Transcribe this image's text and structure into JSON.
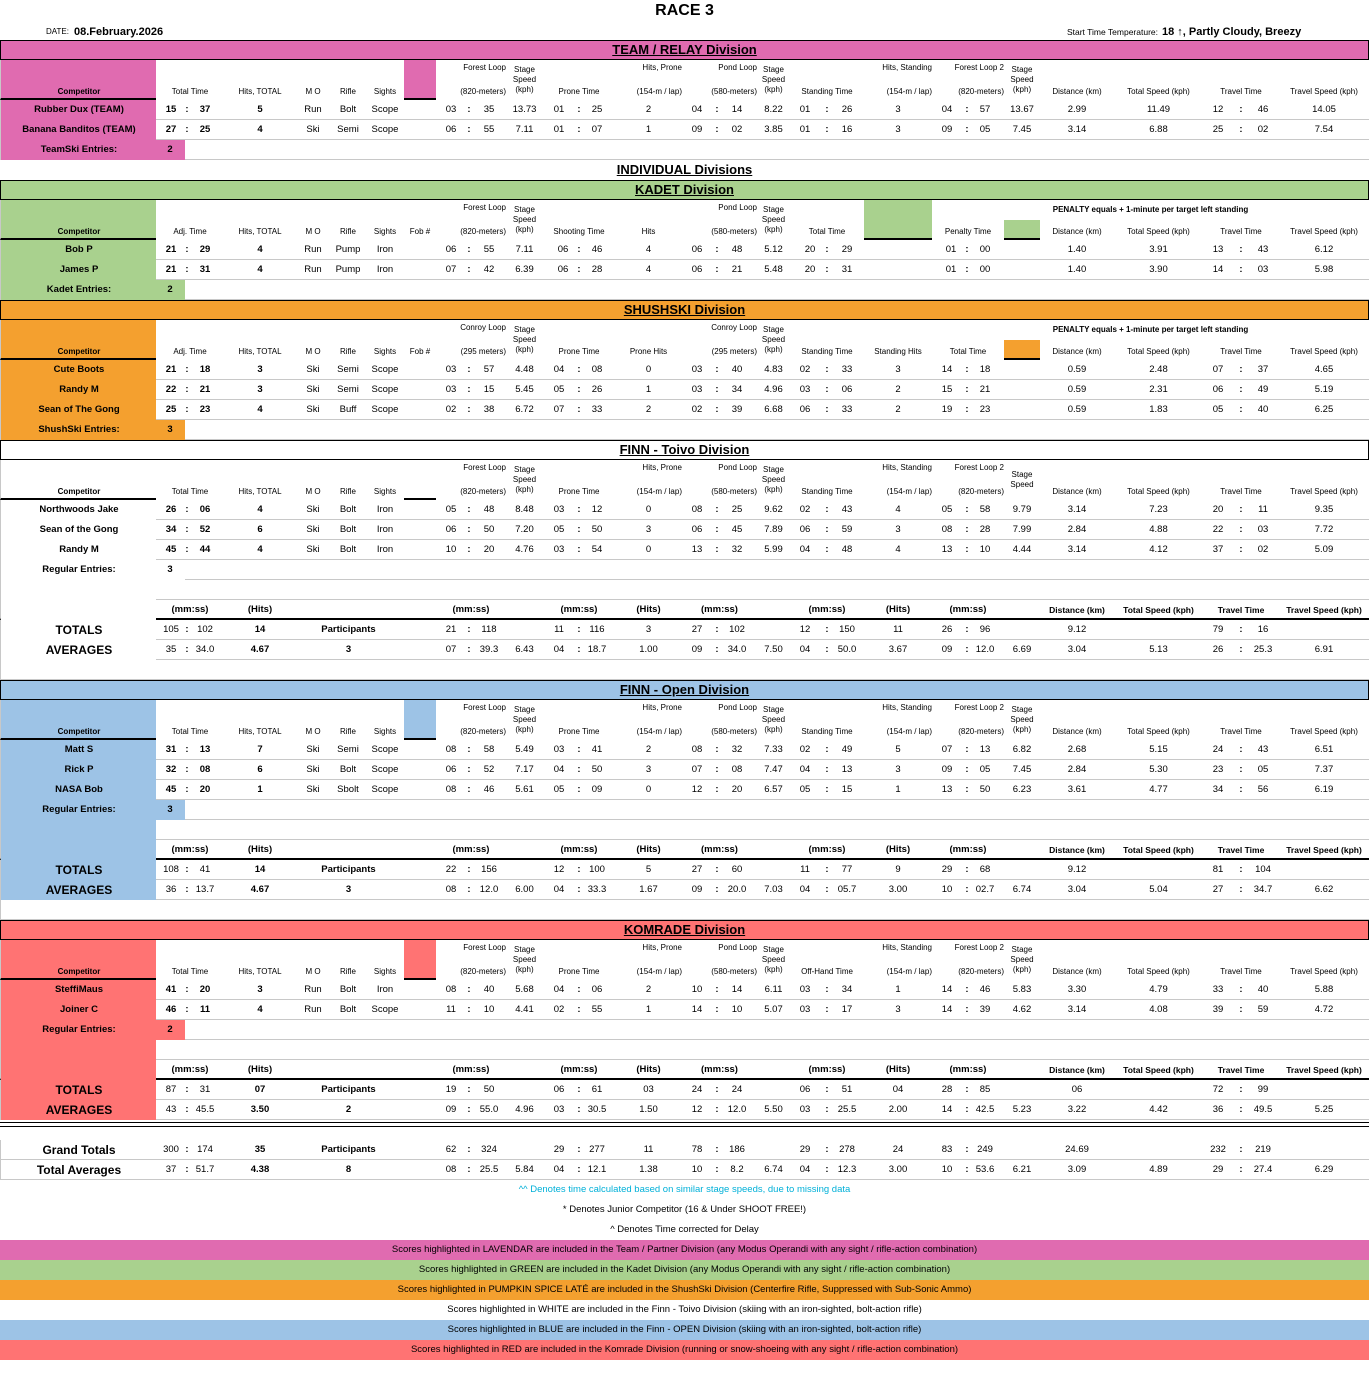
{
  "title": "RACE 3",
  "date_label": "DATE:",
  "date": "08.February.2026",
  "temp_label": "Start Time Temperature:",
  "temp_value": "18 ↑, Partly Cloudy, Breezy",
  "individual_title": "INDIVIDUAL Divisions",
  "colors": {
    "team": "#e06bb0",
    "kadet": "#a9d18e",
    "shushski": "#f4a02f",
    "finn_toivo": "#ffffff",
    "finn_open": "#9dc3e6",
    "komrade": "#ff7373"
  },
  "divisions": [
    {
      "id": "team",
      "title": "TEAM / RELAY Division",
      "color": "team",
      "layout": "A",
      "headers": [
        "Competitor",
        "Total Time",
        "Hits, TOTAL",
        "M O",
        "Rifle",
        "Sights",
        "Forest Loop\n(820-meters)",
        "Stage Speed (kph)",
        "Prone Time",
        "Hits, Prone\n(154-m / lap)",
        "Pond Loop\n(580-meters)",
        "Stage Speed (kph)",
        "Standing Time",
        "Hits, Standing\n(154-m / lap)",
        "Forest Loop 2\n(820-meters)",
        "Stage Speed (kph)",
        "Distance (km)",
        "Total Speed (kph)",
        "Travel Time",
        "Travel Speed (kph)"
      ],
      "rows": [
        [
          "Rubber Dux (TEAM)",
          "15",
          "37",
          "5",
          "Run",
          "Bolt",
          "Scope",
          "03",
          "35",
          "13.73",
          "01",
          "25",
          "2",
          "04",
          "14",
          "8.22",
          "01",
          "26",
          "3",
          "04",
          "57",
          "13.67",
          "2.99",
          "11.49",
          "12",
          "46",
          "14.05"
        ],
        [
          "Banana Banditos (TEAM)",
          "27",
          "25",
          "4",
          "Ski",
          "Semi",
          "Scope",
          "06",
          "55",
          "7.11",
          "01",
          "07",
          "1",
          "09",
          "02",
          "3.85",
          "01",
          "16",
          "3",
          "09",
          "05",
          "7.45",
          "3.14",
          "6.88",
          "25",
          "02",
          "7.54"
        ]
      ],
      "entries_label": "TeamSki Entries:",
      "entries": "2"
    },
    {
      "id": "kadet",
      "title": "KADET Division",
      "color": "kadet",
      "layout": "B",
      "headers": [
        "Competitor",
        "Adj. Time",
        "Hits, TOTAL",
        "M O",
        "Rifle",
        "Sights",
        "Fob #",
        "Forest Loop\n(820-meters)",
        "Stage Speed (kph)",
        "Shooting Time",
        "Hits",
        "Pond Loop\n(580-meters)",
        "Stage Speed (kph)",
        "Total Time",
        "Penalty Time",
        "Distance (km)",
        "Total Speed (kph)",
        "Travel Time",
        "Travel Speed (kph)"
      ],
      "penalty_note": "PENALTY equals + 1-minute per target left standing",
      "rows": [
        [
          "Bob P",
          "21",
          "29",
          "4",
          "Run",
          "Pump",
          "Iron",
          "",
          "06",
          "55",
          "7.11",
          "06",
          "46",
          "4",
          "06",
          "48",
          "5.12",
          "20",
          "29",
          "01",
          "00",
          "1.40",
          "3.91",
          "13",
          "43",
          "6.12"
        ],
        [
          "James P",
          "21",
          "31",
          "4",
          "Run",
          "Pump",
          "Iron",
          "",
          "07",
          "42",
          "6.39",
          "06",
          "28",
          "4",
          "06",
          "21",
          "5.48",
          "20",
          "31",
          "01",
          "00",
          "1.40",
          "3.90",
          "14",
          "03",
          "5.98"
        ]
      ],
      "entries_label": "Kadet Entries:",
      "entries": "2"
    },
    {
      "id": "shushski",
      "title": "SHUSHSKI Division",
      "color": "shushski",
      "layout": "C",
      "headers": [
        "Competitor",
        "Adj. Time",
        "Hits, TOTAL",
        "M O",
        "Rifle",
        "Sights",
        "Fob #",
        "Conroy Loop\n(295 meters)",
        "Stage Speed (kph)",
        "Prone Time",
        "Prone Hits",
        "Conroy Loop\n(295 meters)",
        "Stage Speed (kph)",
        "Standing Time",
        "Standing Hits",
        "Total Time",
        "Distance (km)",
        "Total Speed (kph)",
        "Travel Time",
        "Travel Speed (kph)"
      ],
      "penalty_note": "PENALTY equals + 1-minute per target left standing",
      "rows": [
        [
          "Cute Boots",
          "21",
          "18",
          "3",
          "Ski",
          "Semi",
          "Scope",
          "",
          "03",
          "57",
          "4.48",
          "04",
          "08",
          "0",
          "03",
          "40",
          "4.83",
          "02",
          "33",
          "3",
          "14",
          "18",
          "0.59",
          "2.48",
          "07",
          "37",
          "4.65"
        ],
        [
          "Randy M",
          "22",
          "21",
          "3",
          "Ski",
          "Semi",
          "Scope",
          "",
          "03",
          "15",
          "5.45",
          "05",
          "26",
          "1",
          "03",
          "34",
          "4.96",
          "03",
          "06",
          "2",
          "15",
          "21",
          "0.59",
          "2.31",
          "06",
          "49",
          "5.19"
        ],
        [
          "Sean of The Gong",
          "25",
          "23",
          "4",
          "Ski",
          "Buff",
          "Scope",
          "",
          "02",
          "38",
          "6.72",
          "07",
          "33",
          "2",
          "02",
          "39",
          "6.68",
          "06",
          "33",
          "2",
          "19",
          "23",
          "0.59",
          "1.83",
          "05",
          "40",
          "6.25"
        ]
      ],
      "entries_label": "ShushSki Entries:",
      "entries": "3"
    },
    {
      "id": "toivo",
      "title": "FINN - Toivo Division",
      "color": "finn_toivo",
      "layout": "A",
      "headers": [
        "Competitor",
        "Total Time",
        "Hits, TOTAL",
        "M O",
        "Rifle",
        "Sights",
        "Forest Loop\n(820-meters)",
        "Stage Speed (kph)",
        "Prone Time",
        "Hits, Prone\n(154-m / lap)",
        "Pond Loop\n(580-meters)",
        "Stage Speed (kph)",
        "Standing Time",
        "Hits, Standing\n(154-m / lap)",
        "Forest Loop 2\n(820-meters)",
        "Stage Speed",
        "Distance (km)",
        "Total Speed (kph)",
        "Travel Time",
        "Travel Speed (kph)"
      ],
      "rows": [
        [
          "Northwoods Jake",
          "26",
          "06",
          "4",
          "Ski",
          "Bolt",
          "Iron",
          "05",
          "48",
          "8.48",
          "03",
          "12",
          "0",
          "08",
          "25",
          "9.62",
          "02",
          "43",
          "4",
          "05",
          "58",
          "9.79",
          "3.14",
          "7.23",
          "20",
          "11",
          "9.35"
        ],
        [
          "Sean of the Gong",
          "34",
          "52",
          "6",
          "Ski",
          "Bolt",
          "Iron",
          "06",
          "50",
          "7.20",
          "05",
          "50",
          "3",
          "06",
          "45",
          "7.89",
          "06",
          "59",
          "3",
          "08",
          "28",
          "7.99",
          "2.84",
          "4.88",
          "22",
          "03",
          "7.72"
        ],
        [
          "Randy M",
          "45",
          "44",
          "4",
          "Ski",
          "Bolt",
          "Iron",
          "10",
          "20",
          "4.76",
          "03",
          "54",
          "0",
          "13",
          "32",
          "5.99",
          "04",
          "48",
          "4",
          "13",
          "10",
          "4.44",
          "3.14",
          "4.12",
          "37",
          "02",
          "5.09"
        ]
      ],
      "entries_label": "Regular Entries:",
      "entries": "3",
      "units": [
        "(mm:ss)",
        "(Hits)",
        "(mm:ss)",
        "(mm:ss)",
        "(Hits)",
        "(mm:ss)",
        "(mm:ss)",
        "(Hits)",
        "(mm:ss)",
        "Distance (km)",
        "Total Speed (kph)",
        "Travel Time",
        "Travel Speed (kph)"
      ],
      "totals": [
        "TOTALS",
        "105",
        "102",
        "14",
        "Participants",
        "21",
        "118",
        "",
        "11",
        "116",
        "3",
        "27",
        "102",
        "",
        "12",
        "150",
        "11",
        "26",
        "96",
        "",
        "9.12",
        "",
        "79",
        "16",
        ""
      ],
      "averages": [
        "AVERAGES",
        "35",
        "34.0",
        "4.67",
        "3",
        "07",
        "39.3",
        "6.43",
        "04",
        "18.7",
        "1.00",
        "09",
        "34.0",
        "7.50",
        "04",
        "50.0",
        "3.67",
        "09",
        "12.0",
        "6.69",
        "3.04",
        "5.13",
        "26",
        "25.3",
        "6.91"
      ]
    },
    {
      "id": "open",
      "title": "FINN - Open Division",
      "color": "finn_open",
      "layout": "A",
      "headers": [
        "Competitor",
        "Total Time",
        "Hits, TOTAL",
        "M O",
        "Rifle",
        "Sights",
        "Forest Loop\n(820-meters)",
        "Stage Speed (kph)",
        "Prone Time",
        "Hits, Prone\n(154-m / lap)",
        "Pond Loop\n(580-meters)",
        "Stage Speed (kph)",
        "Standing Time",
        "Hits, Standing\n(154-m / lap)",
        "Forest Loop 2\n(820-meters)",
        "Stage Speed (kph)",
        "Distance (km)",
        "Total Speed (kph)",
        "Travel Time",
        "Travel Speed (kph)"
      ],
      "rows": [
        [
          "Matt S",
          "31",
          "13",
          "7",
          "Ski",
          "Semi",
          "Scope",
          "08",
          "58",
          "5.49",
          "03",
          "41",
          "2",
          "08",
          "32",
          "7.33",
          "02",
          "49",
          "5",
          "07",
          "13",
          "6.82",
          "2.68",
          "5.15",
          "24",
          "43",
          "6.51"
        ],
        [
          "Rick P",
          "32",
          "08",
          "6",
          "Ski",
          "Bolt",
          "Scope",
          "06",
          "52",
          "7.17",
          "04",
          "50",
          "3",
          "07",
          "08",
          "7.47",
          "04",
          "13",
          "3",
          "09",
          "05",
          "7.45",
          "2.84",
          "5.30",
          "23",
          "05",
          "7.37"
        ],
        [
          "NASA Bob",
          "45",
          "20",
          "1",
          "Ski",
          "Sbolt",
          "Scope",
          "08",
          "46",
          "5.61",
          "05",
          "09",
          "0",
          "12",
          "20",
          "6.57",
          "05",
          "15",
          "1",
          "13",
          "50",
          "6.23",
          "3.61",
          "4.77",
          "34",
          "56",
          "6.19"
        ]
      ],
      "entries_label": "Regular Entries:",
      "entries": "3",
      "units": [
        "(mm:ss)",
        "(Hits)",
        "(mm:ss)",
        "(mm:ss)",
        "(Hits)",
        "(mm:ss)",
        "(mm:ss)",
        "(Hits)",
        "(mm:ss)",
        "Distance (km)",
        "Total Speed (kph)",
        "Travel Time",
        "Travel Speed (kph)"
      ],
      "totals": [
        "TOTALS",
        "108",
        "41",
        "14",
        "Participants",
        "22",
        "156",
        "",
        "12",
        "100",
        "5",
        "27",
        "60",
        "",
        "11",
        "77",
        "9",
        "29",
        "68",
        "",
        "9.12",
        "",
        "81",
        "104",
        ""
      ],
      "averages": [
        "AVERAGES",
        "36",
        "13.7",
        "4.67",
        "3",
        "08",
        "12.0",
        "6.00",
        "04",
        "33.3",
        "1.67",
        "09",
        "20.0",
        "7.03",
        "04",
        "05.7",
        "3.00",
        "10",
        "02.7",
        "6.74",
        "3.04",
        "5.04",
        "27",
        "34.7",
        "6.62"
      ]
    },
    {
      "id": "komrade",
      "title": "KOMRADE Division",
      "color": "komrade",
      "layout": "A",
      "headers": [
        "Competitor",
        "Total Time",
        "Hits, TOTAL",
        "M O",
        "Rifle",
        "Sights",
        "Forest Loop\n(820-meters)",
        "Stage Speed (kph)",
        "Prone Time",
        "Hits, Prone\n(154-m / lap)",
        "Pond Loop\n(580-meters)",
        "Stage Speed (kph)",
        "Off-Hand Time",
        "Hits, Standing\n(154-m / lap)",
        "Forest Loop 2\n(820-meters)",
        "Stage Speed (kph)",
        "Distance (km)",
        "Total Speed (kph)",
        "Travel Time",
        "Travel Speed (kph)"
      ],
      "rows": [
        [
          "SteffiMaus",
          "41",
          "20",
          "3",
          "Run",
          "Bolt",
          "Iron",
          "08",
          "40",
          "5.68",
          "04",
          "06",
          "2",
          "10",
          "14",
          "6.11",
          "03",
          "34",
          "1",
          "14",
          "46",
          "5.83",
          "3.30",
          "4.79",
          "33",
          "40",
          "5.88"
        ],
        [
          "Joiner C",
          "46",
          "11",
          "4",
          "Run",
          "Bolt",
          "Scope",
          "11",
          "10",
          "4.41",
          "02",
          "55",
          "1",
          "14",
          "10",
          "5.07",
          "03",
          "17",
          "3",
          "14",
          "39",
          "4.62",
          "3.14",
          "4.08",
          "39",
          "59",
          "4.72"
        ]
      ],
      "entries_label": "Regular Entries:",
      "entries": "2",
      "units": [
        "(mm:ss)",
        "(Hits)",
        "(mm:ss)",
        "(mm:ss)",
        "(Hits)",
        "(mm:ss)",
        "(mm:ss)",
        "(Hits)",
        "(mm:ss)",
        "Distance (km)",
        "Total Speed (kph)",
        "Travel Time",
        "Travel Speed (kph)"
      ],
      "totals": [
        "TOTALS",
        "87",
        "31",
        "07",
        "Participants",
        "19",
        "50",
        "",
        "06",
        "61",
        "03",
        "24",
        "24",
        "",
        "06",
        "51",
        "04",
        "28",
        "85",
        "",
        "06",
        "",
        "72",
        "99",
        ""
      ],
      "averages": [
        "AVERAGES",
        "43",
        "45.5",
        "3.50",
        "2",
        "09",
        "55.0",
        "4.96",
        "03",
        "30.5",
        "1.50",
        "12",
        "12.0",
        "5.50",
        "03",
        "25.5",
        "2.00",
        "14",
        "42.5",
        "5.23",
        "3.22",
        "4.42",
        "36",
        "49.5",
        "5.25"
      ]
    }
  ],
  "grand_totals": [
    "Grand Totals",
    "300",
    "174",
    "35",
    "Participants",
    "62",
    "324",
    "",
    "29",
    "277",
    "11",
    "78",
    "186",
    "",
    "29",
    "278",
    "24",
    "83",
    "249",
    "",
    "24.69",
    "",
    "232",
    "219",
    ""
  ],
  "total_averages": [
    "Total Averages",
    "37",
    "51.7",
    "4.38",
    "8",
    "08",
    "25.5",
    "5.84",
    "04",
    "12.1",
    "1.38",
    "10",
    "8.2",
    "6.74",
    "04",
    "12.3",
    "3.00",
    "10",
    "53.6",
    "6.21",
    "3.09",
    "4.89",
    "29",
    "27.4",
    "6.29"
  ],
  "notes": [
    {
      "text": "^^ Denotes time calculated based on similar stage speeds, due to missing data",
      "color": "cyan"
    },
    {
      "text": "* Denotes Junior Competitor (16 & Under SHOOT FREE!)",
      "color": "white"
    },
    {
      "text": "^ Denotes Time corrected for Delay",
      "color": "white"
    },
    {
      "text": "Scores highlighted in LAVENDAR are included in the Team / Partner Division (any Modus Operandi with any sight / rifle-action combination)",
      "color": "team"
    },
    {
      "text": "Scores highlighted in GREEN are included in the Kadet Division (any Modus Operandi with any sight / rifle-action combination)",
      "color": "kadet"
    },
    {
      "text": "Scores highlighted in PUMPKIN SPICE LATÉ are included in the ShushSki Division (Centerfire Rifle, Suppressed with Sub-Sonic Ammo)",
      "color": "shushski"
    },
    {
      "text": "Scores highlighted in WHITE are included in the Finn - Toivo Division (skiing with an iron-sighted, bolt-action rifle)",
      "color": "finn_toivo"
    },
    {
      "text": "Scores highlighted in BLUE are included in the Finn - OPEN Division (skiing with an iron-sighted, bolt-action rifle)",
      "color": "finn_open"
    },
    {
      "text": "Scores highlighted in RED are included in the Komrade Division (running or snow-shoeing with any sight / rifle-action combination)",
      "color": "komrade"
    }
  ]
}
